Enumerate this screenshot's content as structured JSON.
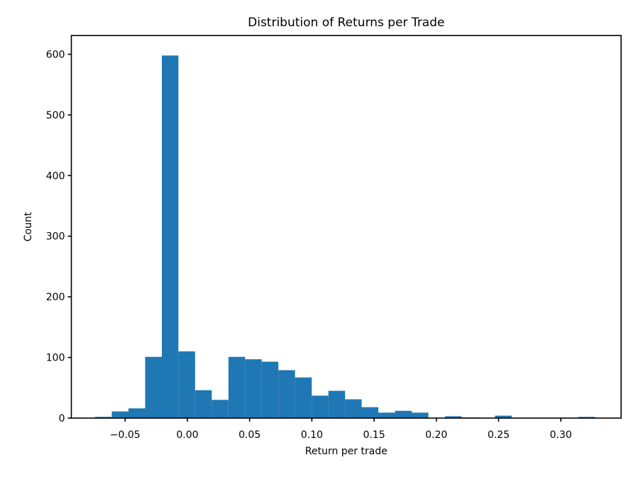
{
  "figure": {
    "background_color": "#ffffff",
    "text_color": "#000000"
  },
  "chart_data": {
    "type": "bar",
    "subtype": "histogram",
    "title": "Distribution of Returns per Trade",
    "xlabel": "Return per trade",
    "ylabel": "Count",
    "bar_color": "#1f77b4",
    "grid": false,
    "legend": null,
    "bin_edges": [
      -0.0741,
      -0.0607,
      -0.0473,
      -0.0339,
      -0.0205,
      -0.0072,
      0.0062,
      0.0196,
      0.033,
      0.0464,
      0.0597,
      0.0731,
      0.0865,
      0.0999,
      0.1133,
      0.1267,
      0.14,
      0.1534,
      0.1668,
      0.1802,
      0.1936,
      0.2069,
      0.2203,
      0.2337,
      0.2471,
      0.2605,
      0.2739,
      0.2872,
      0.3006,
      0.314,
      0.3274
    ],
    "counts": [
      2,
      11,
      16,
      101,
      598,
      110,
      46,
      30,
      101,
      97,
      93,
      79,
      67,
      37,
      45,
      31,
      18,
      9,
      12,
      9,
      0,
      3,
      1,
      0,
      4,
      0,
      0,
      0,
      0,
      2
    ],
    "xlim": [
      -0.0932,
      0.3484
    ],
    "ylim": [
      0,
      631
    ],
    "xticks": {
      "values": [
        -0.05,
        0.0,
        0.05,
        0.1,
        0.15,
        0.2,
        0.25,
        0.3
      ],
      "labels": [
        "−0.05",
        "0.00",
        "0.05",
        "0.10",
        "0.15",
        "0.20",
        "0.25",
        "0.30"
      ]
    },
    "yticks": {
      "values": [
        0,
        100,
        200,
        300,
        400,
        500,
        600
      ],
      "labels": [
        "0",
        "100",
        "200",
        "300",
        "400",
        "500",
        "600"
      ]
    }
  }
}
